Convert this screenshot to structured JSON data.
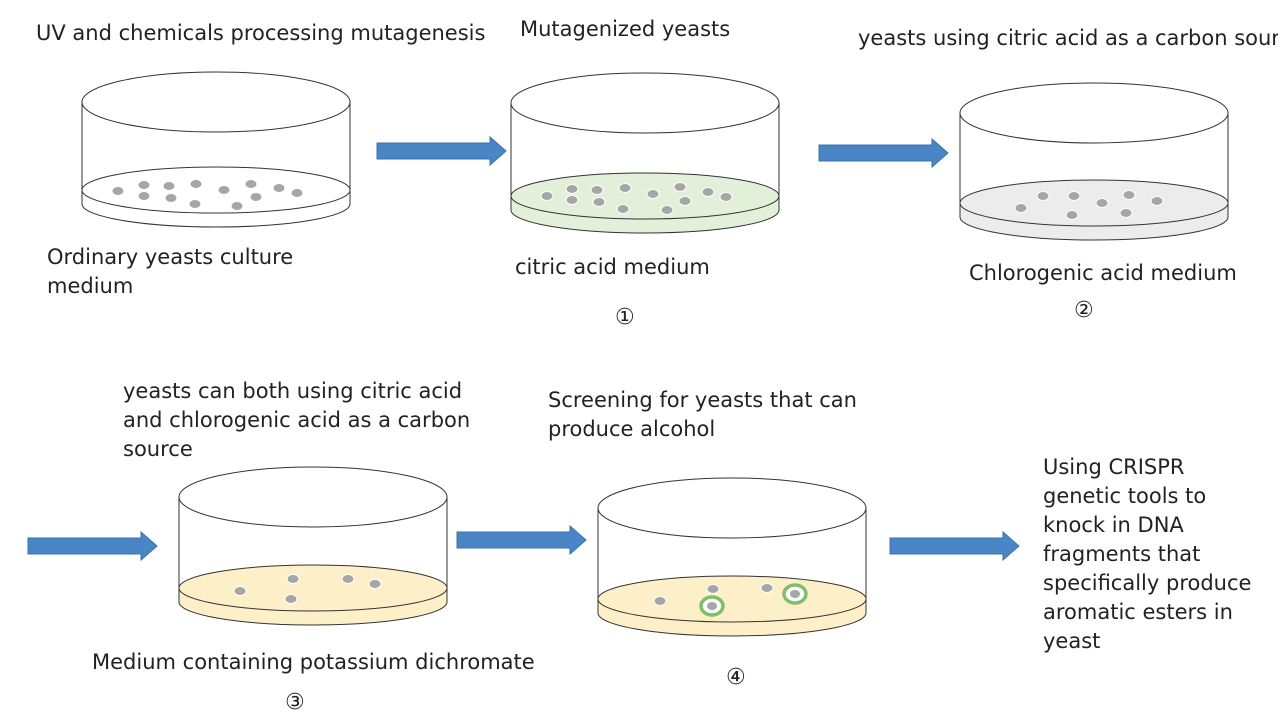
{
  "labels": {
    "step0_top": "UV and chemicals processing mutagenesis",
    "step0_bottom": "Ordinary yeasts culture medium",
    "step1_top": "Mutagenized yeasts",
    "step1_bottom": "citric acid medium",
    "step1_num": "①",
    "step2_top": "yeasts using citric acid as a carbon source",
    "step2_bottom": "Chlorogenic acid medium",
    "step2_num": "②",
    "step3_top": "yeasts can both using citric acid and chlorogenic acid as a carbon source",
    "step3_bottom": "Medium containing potassium dichromate",
    "step3_num": "③",
    "step4_top": "Screening for yeasts that can produce alcohol",
    "step4_num": "④",
    "final_text": "Using CRISPR genetic tools to knock in DNA fragments that specifically produce aromatic esters in yeast"
  },
  "colors": {
    "arrow": "#4a86c6",
    "colony": "#a6a6a6",
    "medium_plain": "#ffffff",
    "medium_citric": "#e2efd9",
    "medium_chlorogenic": "#ececec",
    "medium_dichromate": "#fdefc8",
    "halo": "#7fbf6a"
  },
  "dishes": [
    {
      "name": "dish-ordinary-medium",
      "medium": "medium_plain"
    },
    {
      "name": "dish-citric-acid",
      "medium": "medium_citric"
    },
    {
      "name": "dish-chlorogenic-acid",
      "medium": "medium_chlorogenic"
    },
    {
      "name": "dish-potassium-dichromate",
      "medium": "medium_dichromate"
    },
    {
      "name": "dish-alcohol-screen",
      "medium": "medium_dichromate"
    }
  ]
}
